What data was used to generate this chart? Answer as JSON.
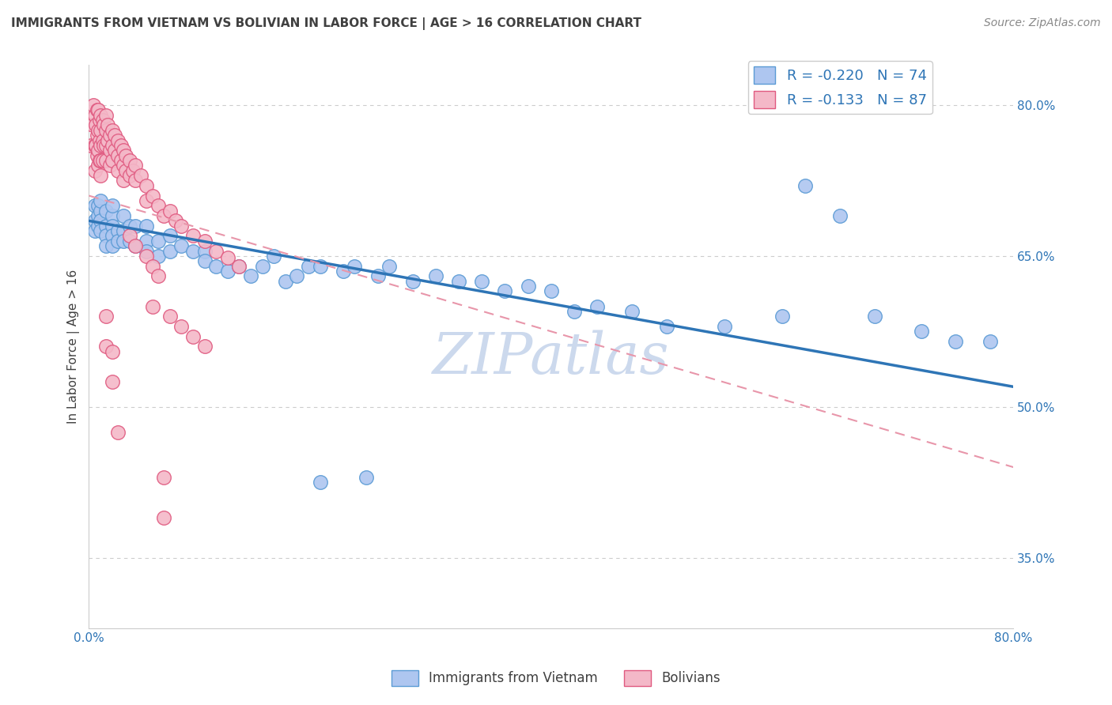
{
  "title": "IMMIGRANTS FROM VIETNAM VS BOLIVIAN IN LABOR FORCE | AGE > 16 CORRELATION CHART",
  "source": "Source: ZipAtlas.com",
  "ylabel": "In Labor Force | Age > 16",
  "xlim": [
    0.0,
    0.8
  ],
  "ylim": [
    0.28,
    0.84
  ],
  "ytick_positions": [
    0.35,
    0.5,
    0.65,
    0.8
  ],
  "ytick_labels": [
    "35.0%",
    "50.0%",
    "65.0%",
    "80.0%"
  ],
  "watermark": "ZIPatlas",
  "series": [
    {
      "name": "Immigrants from Vietnam",
      "color": "#aec6f0",
      "edge_color": "#5b9bd5",
      "R": -0.22,
      "N": 74,
      "line_color": "#2e75b6",
      "line_style": "solid",
      "line_x0": 0.0,
      "line_y0": 0.685,
      "line_x1": 0.8,
      "line_y1": 0.52,
      "x": [
        0.005,
        0.005,
        0.005,
        0.008,
        0.008,
        0.008,
        0.01,
        0.01,
        0.01,
        0.01,
        0.015,
        0.015,
        0.015,
        0.015,
        0.02,
        0.02,
        0.02,
        0.02,
        0.02,
        0.025,
        0.025,
        0.03,
        0.03,
        0.03,
        0.035,
        0.035,
        0.04,
        0.04,
        0.05,
        0.05,
        0.05,
        0.06,
        0.06,
        0.07,
        0.07,
        0.08,
        0.09,
        0.1,
        0.1,
        0.11,
        0.12,
        0.13,
        0.14,
        0.15,
        0.16,
        0.17,
        0.18,
        0.19,
        0.2,
        0.22,
        0.23,
        0.25,
        0.26,
        0.28,
        0.3,
        0.32,
        0.34,
        0.36,
        0.38,
        0.4,
        0.42,
        0.44,
        0.47,
        0.5,
        0.55,
        0.6,
        0.62,
        0.65,
        0.68,
        0.72,
        0.75,
        0.78,
        0.2,
        0.24
      ],
      "y": [
        0.685,
        0.675,
        0.7,
        0.69,
        0.68,
        0.7,
        0.695,
        0.685,
        0.675,
        0.705,
        0.68,
        0.695,
        0.67,
        0.66,
        0.69,
        0.68,
        0.67,
        0.66,
        0.7,
        0.675,
        0.665,
        0.69,
        0.675,
        0.665,
        0.665,
        0.68,
        0.68,
        0.66,
        0.665,
        0.655,
        0.68,
        0.665,
        0.65,
        0.67,
        0.655,
        0.66,
        0.655,
        0.655,
        0.645,
        0.64,
        0.635,
        0.64,
        0.63,
        0.64,
        0.65,
        0.625,
        0.63,
        0.64,
        0.64,
        0.635,
        0.64,
        0.63,
        0.64,
        0.625,
        0.63,
        0.625,
        0.625,
        0.615,
        0.62,
        0.615,
        0.595,
        0.6,
        0.595,
        0.58,
        0.58,
        0.59,
        0.72,
        0.69,
        0.59,
        0.575,
        0.565,
        0.565,
        0.425,
        0.43
      ]
    },
    {
      "name": "Bolivians",
      "color": "#f4b8c8",
      "edge_color": "#e05a80",
      "R": -0.133,
      "N": 87,
      "line_color": "#e896aa",
      "line_style": "dashed",
      "line_x0": 0.0,
      "line_y0": 0.71,
      "line_x1": 0.8,
      "line_y1": 0.44,
      "x": [
        0.002,
        0.003,
        0.004,
        0.005,
        0.005,
        0.005,
        0.006,
        0.006,
        0.007,
        0.007,
        0.007,
        0.008,
        0.008,
        0.008,
        0.008,
        0.009,
        0.009,
        0.009,
        0.01,
        0.01,
        0.01,
        0.01,
        0.01,
        0.012,
        0.012,
        0.012,
        0.013,
        0.013,
        0.015,
        0.015,
        0.015,
        0.015,
        0.016,
        0.016,
        0.018,
        0.018,
        0.018,
        0.02,
        0.02,
        0.02,
        0.022,
        0.022,
        0.025,
        0.025,
        0.025,
        0.028,
        0.028,
        0.03,
        0.03,
        0.03,
        0.032,
        0.032,
        0.035,
        0.035,
        0.038,
        0.04,
        0.04,
        0.045,
        0.05,
        0.05,
        0.055,
        0.06,
        0.065,
        0.07,
        0.075,
        0.08,
        0.09,
        0.1,
        0.11,
        0.12,
        0.13,
        0.035,
        0.04,
        0.05,
        0.055,
        0.06,
        0.055,
        0.07,
        0.08,
        0.09,
        0.1,
        0.065,
        0.065,
        0.015,
        0.015,
        0.02,
        0.02,
        0.025
      ],
      "y": [
        0.76,
        0.78,
        0.8,
        0.79,
        0.76,
        0.735,
        0.78,
        0.76,
        0.795,
        0.77,
        0.75,
        0.795,
        0.775,
        0.755,
        0.74,
        0.785,
        0.765,
        0.745,
        0.79,
        0.775,
        0.76,
        0.745,
        0.73,
        0.785,
        0.765,
        0.745,
        0.78,
        0.76,
        0.79,
        0.775,
        0.76,
        0.745,
        0.78,
        0.765,
        0.77,
        0.755,
        0.74,
        0.775,
        0.76,
        0.745,
        0.77,
        0.755,
        0.765,
        0.75,
        0.735,
        0.76,
        0.745,
        0.755,
        0.74,
        0.725,
        0.75,
        0.735,
        0.745,
        0.73,
        0.735,
        0.74,
        0.725,
        0.73,
        0.72,
        0.705,
        0.71,
        0.7,
        0.69,
        0.695,
        0.685,
        0.68,
        0.67,
        0.665,
        0.655,
        0.648,
        0.64,
        0.67,
        0.66,
        0.65,
        0.64,
        0.63,
        0.6,
        0.59,
        0.58,
        0.57,
        0.56,
        0.43,
        0.39,
        0.59,
        0.56,
        0.555,
        0.525,
        0.475
      ]
    }
  ],
  "title_fontsize": 11,
  "axis_label_fontsize": 11,
  "tick_fontsize": 11,
  "legend_fontsize": 13,
  "watermark_fontsize": 52,
  "source_fontsize": 10,
  "title_color": "#404040",
  "tick_color": "#2e75b6",
  "watermark_color": "#ccd9ed",
  "background_color": "#ffffff",
  "grid_color": "#cccccc"
}
